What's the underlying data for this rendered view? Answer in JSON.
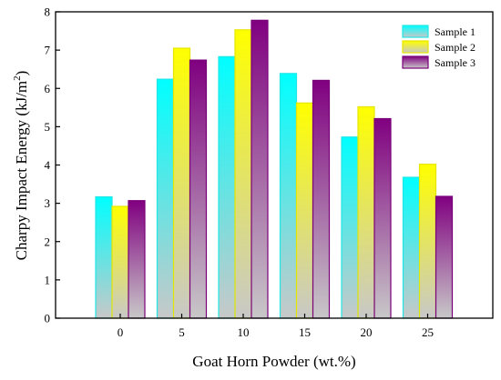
{
  "chart_data": {
    "type": "bar",
    "title": "",
    "xlabel": "Goat Horn Powder (wt.%)",
    "ylabel": "Charpy Impact Energy (kJ/m",
    "ylabel_superscript": "2",
    "ylabel_suffix": ")",
    "categories": [
      "0",
      "5",
      "10",
      "15",
      "20",
      "25"
    ],
    "ylim": [
      0,
      8
    ],
    "yticks": [
      0,
      1,
      2,
      3,
      4,
      5,
      6,
      7,
      8
    ],
    "grid": false,
    "legend_position": "top-right",
    "series": [
      {
        "name": "Sample 1",
        "values": [
          3.17,
          6.24,
          6.83,
          6.39,
          4.73,
          3.68
        ],
        "top_color": "#00ffff",
        "bottom_color": "#c8c8c8",
        "edge_color": "#22e6e6"
      },
      {
        "name": "Sample 2",
        "values": [
          2.92,
          7.05,
          7.53,
          5.62,
          5.52,
          4.02
        ],
        "top_color": "#ffff00",
        "bottom_color": "#c8c8c8",
        "edge_color": "#e6e600"
      },
      {
        "name": "Sample 3",
        "values": [
          3.07,
          6.74,
          7.78,
          6.21,
          5.21,
          3.18
        ],
        "top_color": "#800080",
        "bottom_color": "#c8c8c8",
        "edge_color": "#7a007a"
      }
    ]
  }
}
